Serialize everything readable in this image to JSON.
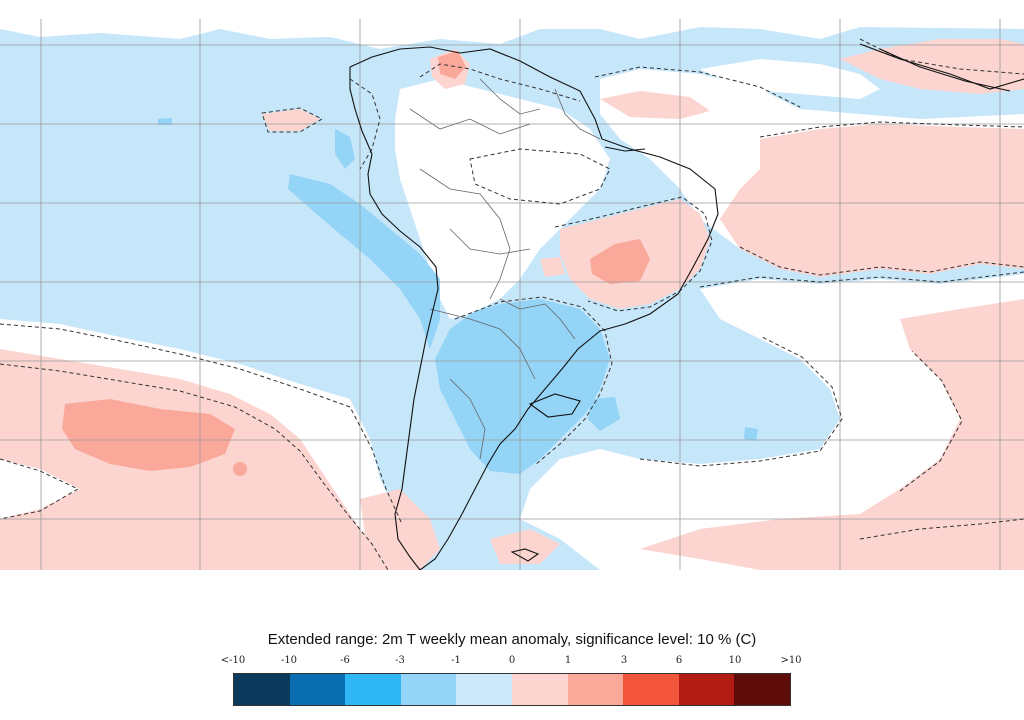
{
  "title": "Extended range: 2m T weekly mean anomaly, significance level: 10 % (C)",
  "colorbar": {
    "ticks": [
      "<-10",
      "-10",
      "-6",
      "-3",
      "-1",
      "0",
      "1",
      "3",
      "6",
      "10",
      ">10"
    ],
    "colors": [
      "#0b3a5c",
      "#0a6db0",
      "#2fb7f5",
      "#93d4f7",
      "#cbe9fa",
      "#fcd4d0",
      "#f9a89a",
      "#f2553a",
      "#b11b12",
      "#5e0d0b"
    ]
  },
  "map": {
    "region": "South America",
    "ocean_background_color": "#c6e6fa",
    "neutral_color": "#ffffff",
    "coastline_color": "#111111",
    "border_color": "#666666",
    "gridline_color": "#999999",
    "significance_contour_style": "dashed"
  }
}
